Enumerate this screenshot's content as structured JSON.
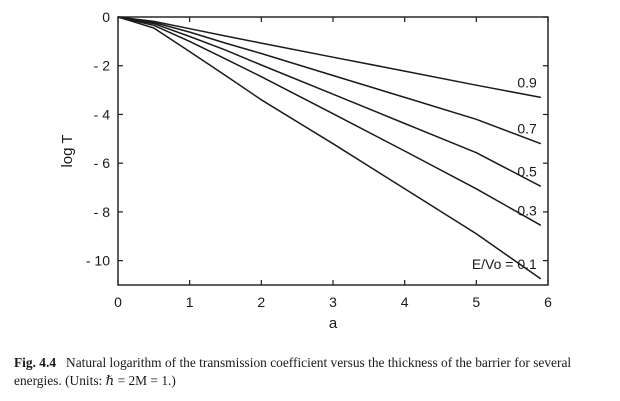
{
  "chart_data": {
    "type": "line",
    "title": "",
    "xlabel": "a",
    "ylabel": "log T",
    "xlim": [
      0,
      6
    ],
    "ylim": [
      -11,
      0
    ],
    "xticks": [
      0,
      1,
      2,
      3,
      4,
      5,
      6
    ],
    "yticks": [
      0,
      -2,
      -4,
      -6,
      -8,
      -10
    ],
    "xtick_labels": [
      "0",
      "1",
      "2",
      "3",
      "4",
      "5",
      "6"
    ],
    "ytick_labels": [
      "0",
      "- 2",
      "- 4",
      "- 6",
      "- 8",
      "- 10"
    ],
    "grid": false,
    "legend": "none (curves labeled at right end)",
    "series": [
      {
        "name": "0.9",
        "x": [
          0,
          0.5,
          1,
          1.5,
          2,
          3,
          4,
          5,
          5.9
        ],
        "y": [
          0,
          -0.18,
          -0.48,
          -0.78,
          -1.07,
          -1.65,
          -2.22,
          -2.8,
          -3.3
        ]
      },
      {
        "name": "0.7",
        "x": [
          0,
          0.5,
          1,
          1.5,
          2,
          3,
          4,
          5,
          5.9
        ],
        "y": [
          0,
          -0.22,
          -0.62,
          -1.07,
          -1.5,
          -2.4,
          -3.3,
          -4.2,
          -5.2
        ]
      },
      {
        "name": "0.5",
        "x": [
          0,
          0.5,
          1,
          1.5,
          2,
          3,
          4,
          5,
          5.9
        ],
        "y": [
          0,
          -0.27,
          -0.8,
          -1.36,
          -1.97,
          -3.17,
          -4.37,
          -5.57,
          -6.95
        ]
      },
      {
        "name": "0.3",
        "x": [
          0,
          0.5,
          1,
          1.5,
          2,
          3,
          4,
          5,
          5.9
        ],
        "y": [
          0,
          -0.34,
          -1.0,
          -1.72,
          -2.45,
          -3.97,
          -5.5,
          -7.05,
          -8.55
        ]
      },
      {
        "name": "E/Vo = 0.1",
        "x": [
          0,
          0.5,
          1,
          1.5,
          2,
          3,
          4,
          5,
          5.9
        ],
        "y": [
          0,
          -0.45,
          -1.42,
          -2.4,
          -3.4,
          -5.2,
          -7.05,
          -8.9,
          -10.75
        ]
      }
    ]
  },
  "caption": {
    "label": "Fig. 4.4",
    "text": "Natural logarithm of the transmission coefficient versus the thickness of the barrier for several energies. (Units: ℏ = 2M = 1.)"
  }
}
